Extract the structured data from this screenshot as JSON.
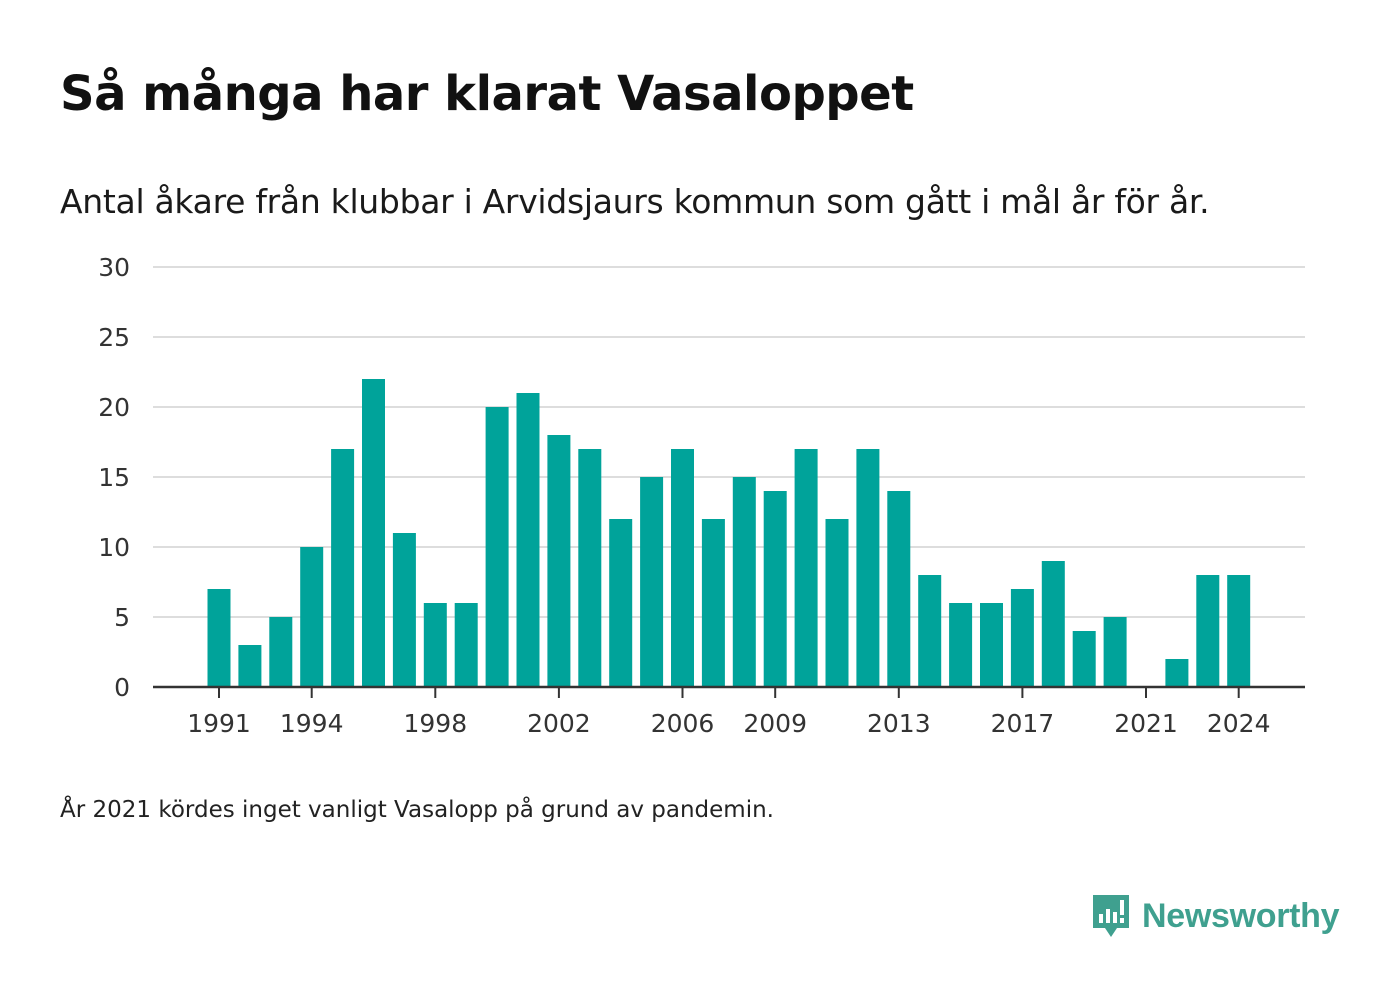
{
  "title": "Så många har klarat Vasaloppet",
  "subtitle": "Antal åkare från klubbar i Arvidsjaurs kommun som gått i mål år för år.",
  "footnote": "År 2021 kördes inget vanligt Vasalopp på grund av pandemin.",
  "brand": {
    "name": "Newsworthy",
    "icon": "newsworthy-logo-icon"
  },
  "colors": {
    "bar": "#00a39a",
    "grid": "#dddddd",
    "axis": "#333333",
    "brand": "#3fa08f"
  },
  "chart_data": {
    "type": "bar",
    "categories": [
      1991,
      1992,
      1993,
      1994,
      1995,
      1996,
      1997,
      1998,
      1999,
      2000,
      2001,
      2002,
      2003,
      2004,
      2005,
      2006,
      2007,
      2008,
      2009,
      2010,
      2011,
      2012,
      2013,
      2014,
      2015,
      2016,
      2017,
      2018,
      2019,
      2020,
      2021,
      2022,
      2023,
      2024
    ],
    "values": [
      7,
      3,
      5,
      10,
      17,
      22,
      11,
      6,
      6,
      20,
      21,
      18,
      17,
      12,
      15,
      17,
      12,
      15,
      14,
      17,
      12,
      17,
      14,
      8,
      6,
      6,
      7,
      9,
      4,
      5,
      0,
      2,
      8,
      8
    ],
    "x_tick_labels": [
      "1991",
      "1994",
      "1998",
      "2002",
      "2006",
      "2009",
      "2013",
      "2017",
      "2021",
      "2024"
    ],
    "y_tick_labels": [
      "0",
      "5",
      "10",
      "15",
      "20",
      "25",
      "30"
    ],
    "ylim": [
      0,
      30
    ],
    "grid": true
  }
}
